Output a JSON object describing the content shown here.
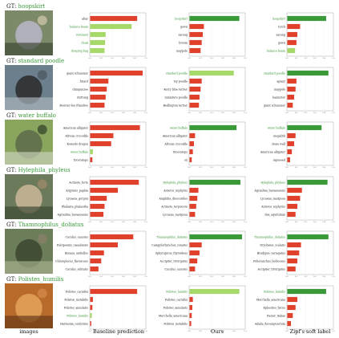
{
  "colors": {
    "gt": "#3a9a3a",
    "correct": "#a6d96a",
    "wrong": "#e0412d"
  },
  "column_headers": [
    "images",
    "Baseline prediction",
    "Ours",
    "Zipf's soft label"
  ],
  "chart_data": {
    "type": "bar",
    "orientation": "horizontal",
    "xlim": [
      0,
      1
    ],
    "rows": [
      {
        "gt_prefix": "GT:",
        "gt_class": "hoopskirt",
        "baseline": {
          "labels": [
            "altar",
            "balance beam",
            "vestment",
            "cloak",
            "sleeping bag"
          ],
          "values": [
            0.85,
            0.75,
            0.28,
            0.27,
            0.26
          ],
          "colors": [
            "wrong",
            "correct",
            "correct",
            "correct",
            "correct"
          ]
        },
        "ours": {
          "labels": [
            "hoopskirt",
            "gown",
            "sarong",
            "broom",
            "maypole"
          ],
          "values": [
            0.9,
            0.26,
            0.24,
            0.22,
            0.2
          ],
          "colors": [
            "gt",
            "wrong",
            "wrong",
            "wrong",
            "wrong"
          ]
        },
        "zipf": {
          "labels": [
            "hoopskirt",
            "torch",
            "sarong",
            "gown",
            "balance beam"
          ],
          "values": [
            0.85,
            0.28,
            0.22,
            0.2,
            0.17
          ],
          "colors": [
            "gt",
            "wrong",
            "wrong",
            "wrong",
            "correct"
          ]
        }
      },
      {
        "gt_prefix": "GT:",
        "gt_class": "standard poodle",
        "baseline": {
          "labels": [
            "giant schnauzer",
            "briard",
            "chimpanzee",
            "stuttung",
            "Bouvier des Flandres"
          ],
          "values": [
            0.95,
            0.33,
            0.3,
            0.28,
            0.26
          ],
          "colors": [
            "wrong",
            "wrong",
            "wrong",
            "wrong",
            "wrong"
          ]
        },
        "ours": {
          "labels": [
            "standard poodle",
            "toy poodle",
            "Kerry blue terrier",
            "miniature poodle",
            "Bedlington terrier"
          ],
          "values": [
            0.8,
            0.22,
            0.2,
            0.18,
            0.17
          ],
          "colors": [
            "correct",
            "wrong",
            "wrong",
            "wrong",
            "wrong"
          ]
        },
        "zipf": {
          "labels": [
            "standard poodle",
            "apiary",
            "maypole",
            "bannister",
            "giant schnauzer"
          ],
          "values": [
            0.9,
            0.2,
            0.18,
            0.15,
            0.12
          ],
          "colors": [
            "gt",
            "wrong",
            "wrong",
            "wrong",
            "wrong"
          ]
        }
      },
      {
        "gt_prefix": "GT:",
        "gt_class": "water buffalo",
        "baseline": {
          "labels": [
            "American alligator",
            "African crocodile",
            "Komodo dragon",
            "water buffalo",
            "triceratops"
          ],
          "values": [
            0.9,
            0.42,
            0.38,
            0.05,
            0.04
          ],
          "colors": [
            "wrong",
            "wrong",
            "wrong",
            "correct",
            "wrong"
          ]
        },
        "ours": {
          "labels": [
            "water buffalo",
            "American alligator",
            "African crocodile",
            "triceratops",
            "ox"
          ],
          "values": [
            0.85,
            0.1,
            0.08,
            0.06,
            0.04
          ],
          "colors": [
            "gt",
            "wrong",
            "wrong",
            "wrong",
            "wrong"
          ]
        },
        "zipf": {
          "labels": [
            "water buffalo",
            "megalith",
            "stone wall",
            "American alligator",
            "rapeseed"
          ],
          "values": [
            0.75,
            0.18,
            0.15,
            0.1,
            0.06
          ],
          "colors": [
            "gt",
            "wrong",
            "wrong",
            "wrong",
            "wrong"
          ]
        }
      },
      {
        "gt_prefix": "GT:",
        "gt_class": "Hylephila_phyleus",
        "baseline": {
          "labels": [
            "Actinote_forte",
            "Argynnis_paphia",
            "Lycaena_gorgon",
            "Phalanta_phalantha",
            "Agraulina_bavaenensis"
          ],
          "values": [
            0.88,
            0.5,
            0.3,
            0.26,
            0.24
          ],
          "colors": [
            "wrong",
            "wrong",
            "wrong",
            "wrong",
            "wrong"
          ]
        },
        "ours": {
          "labels": [
            "Hylephila_phyleus",
            "Anteros_zephyrus",
            "Amphilia_dioscorides",
            "Actinote_terpsicore",
            "Lycaena_mariposa"
          ],
          "values": [
            0.92,
            0.16,
            0.14,
            0.12,
            0.1
          ],
          "colors": [
            "gt",
            "wrong",
            "wrong",
            "wrong",
            "wrong"
          ]
        },
        "zipf": {
          "labels": [
            "Hylephila_phyleus",
            "Agraulina_bavaenensis",
            "Lycaena_mariposa",
            "Anteros_zephyrus",
            "Ilex_aquifolium"
          ],
          "values": [
            0.88,
            0.32,
            0.28,
            0.22,
            0.18
          ],
          "colors": [
            "gt",
            "wrong",
            "wrong",
            "wrong",
            "wrong"
          ]
        }
      },
      {
        "gt_prefix": "GT:",
        "gt_class": "Thamnophilus_doliatus",
        "baseline": {
          "labels": [
            "Cuculus_canorus",
            "Falcipennis_canadensis",
            "Bonasa_umbellus",
            "Chloroplecus_flavescens",
            "Cuculus_solitaris"
          ],
          "values": [
            0.78,
            0.5,
            0.25,
            0.2,
            0.15
          ],
          "colors": [
            "wrong",
            "wrong",
            "wrong",
            "wrong",
            "wrong"
          ]
        },
        "ours": {
          "labels": [
            "Thamnophilus_doliatus",
            "Campylorhynchus_zonatus",
            "Sphyrapicus_thyroideus",
            "Accipiter_trivirgatus",
            "Cuculus_canorus"
          ],
          "values": [
            0.95,
            0.22,
            0.18,
            0.14,
            0.1
          ],
          "colors": [
            "gt",
            "wrong",
            "wrong",
            "wrong",
            "wrong"
          ]
        },
        "zipf": {
          "labels": [
            "Thamnophilus_doliatus",
            "Dryobates_scalaris",
            "Bradypus_variegatus",
            "Polioranchus_bellicosus",
            "Accipiter_trivirgatus"
          ],
          "values": [
            0.9,
            0.3,
            0.26,
            0.22,
            0.18
          ],
          "colors": [
            "gt",
            "wrong",
            "wrong",
            "wrong",
            "wrong"
          ]
        }
      },
      {
        "gt_prefix": "GT:",
        "gt_class": "Polistes_humilis",
        "baseline": {
          "labels": [
            "Polistes_carnifex",
            "Polistes_instabilis",
            "Polistes_annularis",
            "Polistes_humilis",
            "Harmonia_conformis"
          ],
          "values": [
            0.85,
            0.05,
            0.04,
            0.03,
            0.02
          ],
          "colors": [
            "wrong",
            "wrong",
            "wrong",
            "correct",
            "wrong"
          ]
        },
        "ours": {
          "labels": [
            "Polistes_humilis",
            "Polistes_carnifex",
            "Polistes_annularis",
            "Merchella_americana",
            "Polistes_instabilis"
          ],
          "values": [
            0.9,
            0.06,
            0.05,
            0.04,
            0.03
          ],
          "colors": [
            "correct",
            "wrong",
            "wrong",
            "wrong",
            "wrong"
          ]
        },
        "zipf": {
          "labels": [
            "Polistes_humilis",
            "Morchella_americana",
            "Ephestios_fiscus",
            "Passer_italiae",
            "Adalia_decempunctata"
          ],
          "values": [
            0.85,
            0.22,
            0.18,
            0.12,
            0.08
          ],
          "colors": [
            "gt",
            "wrong",
            "wrong",
            "wrong",
            "wrong"
          ]
        }
      }
    ]
  },
  "images": [
    {
      "name": "hoopskirt",
      "palette": [
        "#7d8a6a",
        "#b8b6c9",
        "#3e4a38",
        "#c9c2a8"
      ]
    },
    {
      "name": "standard poodle",
      "palette": [
        "#6b7f8c",
        "#2a2a2a",
        "#a9b4bc",
        "#4c5a62"
      ]
    },
    {
      "name": "water buffalo",
      "palette": [
        "#8aa55e",
        "#5c6b4a",
        "#c9d2b8",
        "#3a4a2e"
      ]
    },
    {
      "name": "Hylephila_phyleus",
      "palette": [
        "#6a7a5a",
        "#c9b899",
        "#3f4a34",
        "#9e8a6a"
      ]
    },
    {
      "name": "Thamnophilus_doliatus",
      "palette": [
        "#6c7d5a",
        "#3c4530",
        "#a5b08a",
        "#8a7f6a"
      ]
    },
    {
      "name": "Polistes_humilis",
      "palette": [
        "#b86a2a",
        "#e2a25a",
        "#6a3a1a",
        "#d08848"
      ]
    }
  ]
}
